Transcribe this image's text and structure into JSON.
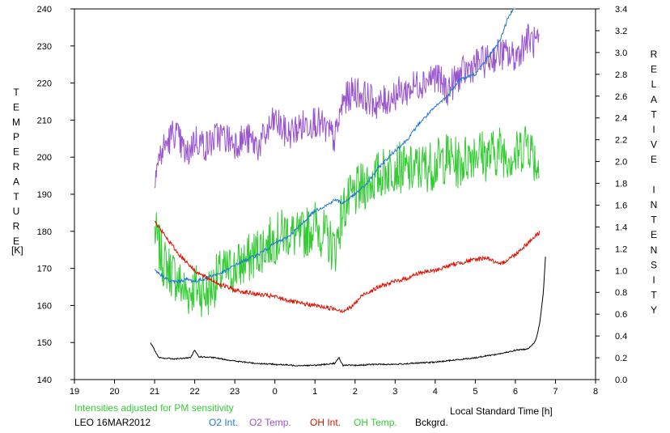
{
  "chart_data": {
    "type": "line",
    "left_axis_label": "TEMPERATURE",
    "left_axis_unit": "[K]",
    "right_axis_label": "RELATIVE INTENSITY",
    "xlabel": "Local Standard Time [h]",
    "note": "Intensities adjusted for PM sensitivity",
    "station": "LEO 16MAR2012",
    "x_ticks": [
      "19",
      "20",
      "21",
      "22",
      "23",
      "0",
      "1",
      "2",
      "3",
      "4",
      "5",
      "6",
      "7",
      "8"
    ],
    "left_ticks": [
      "140",
      "150",
      "160",
      "170",
      "180",
      "190",
      "200",
      "210",
      "220",
      "230",
      "240"
    ],
    "right_ticks": [
      "0.0",
      "0.2",
      "0.4",
      "0.6",
      "0.8",
      "1.0",
      "1.2",
      "1.4",
      "1.6",
      "1.8",
      "2.0",
      "2.2",
      "2.4",
      "2.6",
      "2.8",
      "3.0",
      "3.2",
      "3.4"
    ],
    "xlim": [
      19,
      32
    ],
    "ylim_left": [
      140,
      240
    ],
    "ylim_right": [
      0,
      3.4
    ],
    "grid": false,
    "series": [
      {
        "name": "O2 Int.",
        "axis": "right",
        "color": "#1f78d6",
        "noise": 0.015,
        "x": [
          21.0,
          21.2,
          21.4,
          21.6,
          21.8,
          22.0,
          22.2,
          22.4,
          22.6,
          22.8,
          23.0,
          23.3,
          23.6,
          24.0,
          24.3,
          24.6,
          25.0,
          25.3,
          25.5,
          25.7,
          26.0,
          26.3,
          26.6,
          27.0,
          27.3,
          27.6,
          28.0,
          28.3,
          28.6,
          29.0,
          29.3,
          29.6,
          29.8,
          30.0
        ],
        "y": [
          1.0,
          0.95,
          0.9,
          0.9,
          0.92,
          0.9,
          0.92,
          0.95,
          0.97,
          1.0,
          1.05,
          1.1,
          1.15,
          1.25,
          1.3,
          1.4,
          1.55,
          1.6,
          1.65,
          1.62,
          1.7,
          1.8,
          1.95,
          2.1,
          2.2,
          2.35,
          2.5,
          2.6,
          2.75,
          2.8,
          2.95,
          3.1,
          3.3,
          3.45
        ]
      },
      {
        "name": "O2 Temp.",
        "axis": "left",
        "color": "#9955cc",
        "noise": 4.5,
        "x": [
          21.0,
          21.2,
          21.5,
          21.8,
          22.0,
          22.3,
          22.6,
          23.0,
          23.3,
          23.6,
          24.0,
          24.3,
          24.6,
          25.0,
          25.3,
          25.5,
          25.7,
          26.0,
          26.3,
          26.6,
          27.0,
          27.3,
          27.6,
          28.0,
          28.3,
          28.6,
          29.0,
          29.3,
          29.6,
          30.0,
          30.3,
          30.6
        ],
        "y": [
          196,
          202,
          207,
          200,
          205,
          203,
          206,
          204,
          205,
          203,
          210,
          206,
          208,
          210,
          207,
          205,
          215,
          218,
          216,
          214,
          217,
          218,
          220,
          222,
          218,
          222,
          225,
          226,
          228,
          227,
          232,
          230
        ]
      },
      {
        "name": "OH Int.",
        "axis": "right",
        "color": "#dd1100",
        "noise": 0.02,
        "x": [
          21.0,
          21.2,
          21.4,
          21.6,
          21.8,
          22.0,
          22.2,
          22.4,
          22.6,
          22.8,
          23.0,
          23.3,
          23.6,
          24.0,
          24.3,
          24.6,
          25.0,
          25.3,
          25.5,
          25.7,
          25.9,
          26.2,
          26.6,
          27.0,
          27.3,
          27.6,
          28.0,
          28.3,
          28.6,
          29.0,
          29.3,
          29.6,
          29.8,
          30.0,
          30.3,
          30.6
        ],
        "y": [
          1.45,
          1.35,
          1.25,
          1.15,
          1.08,
          1.0,
          0.95,
          0.92,
          0.88,
          0.85,
          0.82,
          0.8,
          0.78,
          0.76,
          0.73,
          0.7,
          0.68,
          0.66,
          0.65,
          0.63,
          0.66,
          0.78,
          0.85,
          0.9,
          0.93,
          0.98,
          1.0,
          1.04,
          1.07,
          1.1,
          1.12,
          1.05,
          1.1,
          1.15,
          1.25,
          1.35
        ]
      },
      {
        "name": "OH Temp.",
        "axis": "left",
        "color": "#33cc33",
        "noise": 7,
        "x": [
          21.0,
          21.2,
          21.5,
          21.8,
          22.0,
          22.3,
          22.6,
          23.0,
          23.3,
          23.6,
          24.0,
          24.3,
          24.6,
          25.0,
          25.3,
          25.5,
          25.7,
          26.0,
          26.3,
          26.6,
          27.0,
          27.3,
          27.6,
          28.0,
          28.3,
          28.6,
          29.0,
          29.3,
          29.6,
          30.0,
          30.3,
          30.6
        ],
        "y": [
          180,
          172,
          168,
          163,
          165,
          163,
          168,
          170,
          172,
          175,
          178,
          180,
          178,
          182,
          178,
          175,
          186,
          190,
          193,
          195,
          198,
          196,
          197,
          198,
          200,
          198,
          202,
          200,
          202,
          200,
          205,
          196
        ]
      },
      {
        "name": "Bckgrd.",
        "axis": "right",
        "color": "#000000",
        "noise": 0.006,
        "x": [
          20.9,
          21.0,
          21.1,
          21.5,
          21.9,
          22.0,
          22.1,
          22.5,
          23.0,
          23.5,
          24.0,
          24.5,
          25.0,
          25.5,
          25.6,
          25.7,
          26.0,
          26.5,
          27.0,
          27.5,
          28.0,
          28.5,
          29.0,
          29.3,
          29.5,
          29.8,
          30.0,
          30.3,
          30.5,
          30.6,
          30.7,
          30.75
        ],
        "y": [
          0.34,
          0.27,
          0.2,
          0.19,
          0.2,
          0.27,
          0.21,
          0.2,
          0.17,
          0.15,
          0.14,
          0.13,
          0.13,
          0.15,
          0.2,
          0.13,
          0.13,
          0.14,
          0.14,
          0.15,
          0.16,
          0.18,
          0.2,
          0.22,
          0.23,
          0.25,
          0.27,
          0.28,
          0.35,
          0.5,
          0.8,
          1.13
        ]
      }
    ]
  }
}
